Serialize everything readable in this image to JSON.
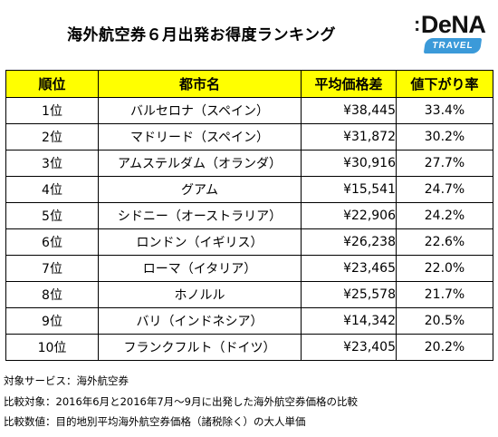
{
  "title": "海外航空券６月出発お得度ランキング",
  "logo": {
    "main": "DeNA",
    "badge": "TRAVEL"
  },
  "table": {
    "headers": [
      "順位",
      "都市名",
      "平均価格差",
      "値下がり率"
    ],
    "rows": [
      {
        "rank": "1位",
        "city": "バルセロナ（スペイン）",
        "price": "¥38,445",
        "rate": "33.4%"
      },
      {
        "rank": "2位",
        "city": "マドリード（スペイン）",
        "price": "¥31,872",
        "rate": "30.2%"
      },
      {
        "rank": "3位",
        "city": "アムステルダム（オランダ）",
        "price": "¥30,916",
        "rate": "27.7%"
      },
      {
        "rank": "4位",
        "city": "グアム",
        "price": "¥15,541",
        "rate": "24.7%"
      },
      {
        "rank": "5位",
        "city": "シドニー（オーストラリア）",
        "price": "¥22,906",
        "rate": "24.2%"
      },
      {
        "rank": "6位",
        "city": "ロンドン（イギリス）",
        "price": "¥26,238",
        "rate": "22.6%"
      },
      {
        "rank": "7位",
        "city": "ローマ（イタリア）",
        "price": "¥23,465",
        "rate": "22.0%"
      },
      {
        "rank": "8位",
        "city": "ホノルル",
        "price": "¥25,578",
        "rate": "21.7%"
      },
      {
        "rank": "9位",
        "city": "バリ（インドネシア）",
        "price": "¥14,342",
        "rate": "20.5%"
      },
      {
        "rank": "10位",
        "city": "フランクフルト（ドイツ）",
        "price": "¥23,405",
        "rate": "20.2%"
      }
    ]
  },
  "notes": [
    "対象サービス：海外航空券",
    "比較対象：2016年6月と2016年7月～9月に出発した海外航空券価格の比較",
    "比較数値：目的地別平均海外航空券価格（諸税除く）の大人単価"
  ]
}
